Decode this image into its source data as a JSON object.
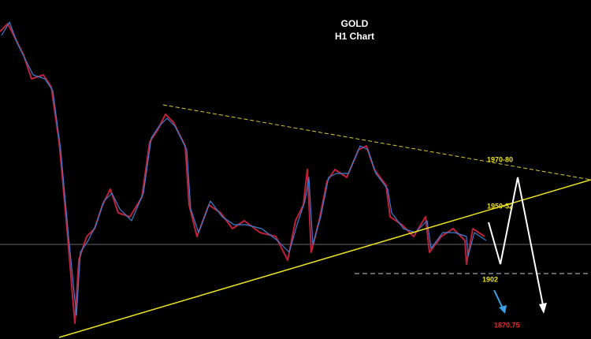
{
  "title": "GOLD",
  "subtitle": "H1 Chart",
  "annotations": {
    "upper_target": "1970-80",
    "trendline_level": "1950-52",
    "support": "1902",
    "downside_target": "1870.75"
  }
}
